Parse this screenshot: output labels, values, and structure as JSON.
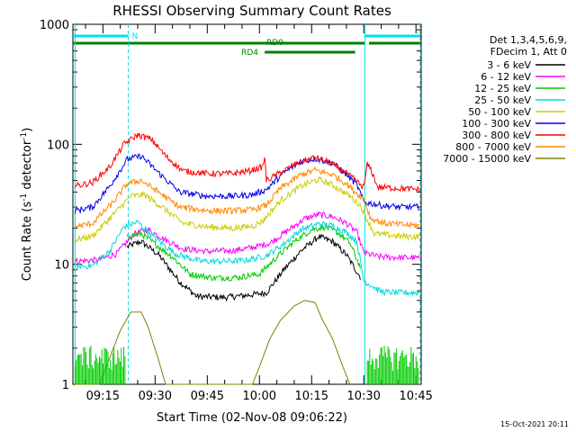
{
  "chart_data": {
    "type": "line",
    "title": "RHESSI Observing Summary Count Rates",
    "xlabel": "Start Time (02-Nov-08 09:06:22)",
    "ylabel": "Count Rate (s",
    "ylabel_sup": "-1",
    "ylabel_rest": " detector",
    "ylabel_close": ")",
    "ytick_labels": [
      "1",
      "10",
      "100",
      "1000"
    ],
    "ytick_values": [
      1,
      10,
      100,
      1000
    ],
    "xtick_labels": [
      "09:15",
      "09:30",
      "09:45",
      "10:00",
      "10:15",
      "10:30",
      "10:45"
    ],
    "xtick_values_min": [
      15,
      30,
      45,
      60,
      75,
      90,
      105
    ],
    "x_range_min": [
      6.37,
      106.5
    ],
    "y_range": [
      1,
      1000
    ],
    "y_scale": "log",
    "legend_header": [
      "Det 1,3,4,5,6,9,",
      "FDecim 1, Att 0"
    ],
    "footer_date": "15-Oct-2021 20:11",
    "flags": {
      "night_label": "N",
      "rd0_label": "RD0",
      "rd4_label": "RD4",
      "night_color": "#00e0e8",
      "rd_color": "#008000",
      "night_segments_min": [
        [
          6.4,
          22.3
        ],
        [
          90.3,
          106.2
        ]
      ],
      "rd0_segment_min": [
        6.4,
        90.3
      ],
      "rd4_segment_min": [
        61.5,
        87.5
      ],
      "rd0_continue_min": [
        91.5,
        106.2
      ],
      "vlines_min": [
        22.3,
        90.3,
        106.2
      ]
    },
    "series": [
      {
        "name": "3 - 6 keV",
        "color": "#000000",
        "points": [
          [
            22,
            14
          ],
          [
            26,
            15.5
          ],
          [
            31,
            12
          ],
          [
            37,
            7.2
          ],
          [
            42,
            5.4
          ],
          [
            50,
            5.3
          ],
          [
            56,
            5.5
          ],
          [
            62,
            5.8
          ],
          [
            67,
            9
          ],
          [
            72,
            13
          ],
          [
            77,
            17
          ],
          [
            81,
            15.5
          ],
          [
            85,
            12
          ],
          [
            89,
            7.8
          ]
        ]
      },
      {
        "name": "6 - 12 keV",
        "color": "#ff00ff",
        "points": [
          [
            7,
            10.6
          ],
          [
            14,
            10.9
          ],
          [
            19,
            12.3
          ],
          [
            24,
            18
          ],
          [
            28,
            19.5
          ],
          [
            33,
            16
          ],
          [
            38,
            13.5
          ],
          [
            45,
            12.8
          ],
          [
            52,
            13
          ],
          [
            58,
            13.8
          ],
          [
            63,
            15
          ],
          [
            68,
            19
          ],
          [
            73,
            24
          ],
          [
            77,
            26
          ],
          [
            81,
            25
          ],
          [
            85,
            22
          ],
          [
            88,
            18.5
          ],
          [
            90,
            12.5
          ],
          [
            94,
            11.6
          ],
          [
            100,
            11.4
          ],
          [
            106,
            11.3
          ]
        ]
      },
      {
        "name": "12 - 25 keV",
        "color": "#00cc00",
        "points": [
          [
            22,
            17
          ],
          [
            26,
            18
          ],
          [
            30,
            14.8
          ],
          [
            35,
            11.5
          ],
          [
            40,
            8.3
          ],
          [
            47,
            7.7
          ],
          [
            54,
            7.8
          ],
          [
            60,
            8.3
          ],
          [
            65,
            11.5
          ],
          [
            70,
            15.5
          ],
          [
            75,
            19.5
          ],
          [
            79,
            20.5
          ],
          [
            83,
            18
          ],
          [
            86,
            15
          ],
          [
            89,
            9.5
          ]
        ]
      },
      {
        "name": "25 - 50 keV",
        "color": "#00dddd",
        "points": [
          [
            7,
            9.6
          ],
          [
            12,
            9.7
          ],
          [
            17,
            13
          ],
          [
            21,
            20.5
          ],
          [
            25,
            22.5
          ],
          [
            30,
            16.5
          ],
          [
            36,
            12.2
          ],
          [
            43,
            10.6
          ],
          [
            50,
            10.6
          ],
          [
            56,
            10.8
          ],
          [
            62,
            11.8
          ],
          [
            67,
            14.8
          ],
          [
            72,
            19.5
          ],
          [
            77,
            21.8
          ],
          [
            81,
            21
          ],
          [
            85,
            18.5
          ],
          [
            88,
            15.5
          ],
          [
            90,
            7.3
          ],
          [
            95,
            5.9
          ],
          [
            100,
            5.8
          ],
          [
            106,
            5.8
          ]
        ]
      },
      {
        "name": "50 - 100 keV",
        "color": "#cccc00",
        "points": [
          [
            7,
            16
          ],
          [
            12,
            17.2
          ],
          [
            18,
            26
          ],
          [
            23,
            37
          ],
          [
            27,
            38
          ],
          [
            32,
            30
          ],
          [
            38,
            22
          ],
          [
            45,
            20.5
          ],
          [
            52,
            20
          ],
          [
            58,
            20.8
          ],
          [
            61,
            23
          ],
          [
            66,
            34
          ],
          [
            72,
            45
          ],
          [
            77,
            51
          ],
          [
            81,
            46
          ],
          [
            86,
            37
          ],
          [
            89,
            31
          ],
          [
            93,
            18
          ],
          [
            100,
            17.2
          ],
          [
            106,
            17
          ]
        ]
      },
      {
        "name": "100 - 300 keV",
        "color": "#0000ee",
        "points": [
          [
            7,
            28
          ],
          [
            12,
            30
          ],
          [
            17,
            45
          ],
          [
            22,
            75
          ],
          [
            26,
            80
          ],
          [
            31,
            58
          ],
          [
            37,
            40
          ],
          [
            45,
            37
          ],
          [
            52,
            37
          ],
          [
            58,
            38
          ],
          [
            62,
            42
          ],
          [
            67,
            58
          ],
          [
            72,
            72
          ],
          [
            76,
            76
          ],
          [
            81,
            70
          ],
          [
            85,
            56
          ],
          [
            88,
            46
          ],
          [
            90,
            33
          ],
          [
            95,
            31
          ],
          [
            100,
            30
          ],
          [
            106,
            30
          ]
        ]
      },
      {
        "name": "300 - 800 keV",
        "color": "#ff0000",
        "points": [
          [
            7,
            45
          ],
          [
            12,
            48
          ],
          [
            17,
            65
          ],
          [
            21,
            100
          ],
          [
            25,
            120
          ],
          [
            29,
            110
          ],
          [
            33,
            80
          ],
          [
            38,
            60
          ],
          [
            45,
            57
          ],
          [
            52,
            57
          ],
          [
            57,
            60
          ],
          [
            61,
            65
          ],
          [
            61.5,
            80
          ],
          [
            62,
            50
          ],
          [
            66,
            58
          ],
          [
            71,
            70
          ],
          [
            76,
            78
          ],
          [
            80,
            71
          ],
          [
            84,
            60
          ],
          [
            87,
            52
          ],
          [
            89,
            46
          ],
          [
            90,
            44
          ],
          [
            91,
            68
          ],
          [
            92,
            62
          ],
          [
            94,
            44
          ],
          [
            100,
            43
          ],
          [
            106,
            42
          ]
        ]
      },
      {
        "name": "800 - 7000 keV",
        "color": "#ff8800",
        "points": [
          [
            7,
            20.5
          ],
          [
            12,
            22
          ],
          [
            18,
            33
          ],
          [
            22,
            47
          ],
          [
            26,
            50
          ],
          [
            31,
            40
          ],
          [
            37,
            30
          ],
          [
            45,
            28
          ],
          [
            52,
            28
          ],
          [
            58,
            28.5
          ],
          [
            62,
            31
          ],
          [
            66,
            43
          ],
          [
            72,
            56
          ],
          [
            76,
            61
          ],
          [
            81,
            56
          ],
          [
            85,
            47
          ],
          [
            88,
            39
          ],
          [
            90,
            35
          ],
          [
            92,
            24
          ],
          [
            96,
            22
          ],
          [
            100,
            21.5
          ],
          [
            106,
            21
          ]
        ]
      },
      {
        "name": "7000 - 15000 keV",
        "color": "#808000",
        "points": [
          [
            7,
            1
          ],
          [
            14,
            1
          ],
          [
            16,
            1.4
          ],
          [
            18,
            2
          ],
          [
            20,
            2.8
          ],
          [
            23,
            4
          ],
          [
            26,
            4
          ],
          [
            28,
            3
          ],
          [
            31,
            1.6
          ],
          [
            33,
            1
          ],
          [
            58,
            1
          ],
          [
            60,
            1.4
          ],
          [
            63,
            2.4
          ],
          [
            66,
            3.4
          ],
          [
            70,
            4.5
          ],
          [
            73,
            5
          ],
          [
            76,
            4.8
          ],
          [
            78,
            3.5
          ],
          [
            81,
            2.4
          ],
          [
            84,
            1.4
          ],
          [
            86,
            1
          ]
        ]
      }
    ]
  }
}
